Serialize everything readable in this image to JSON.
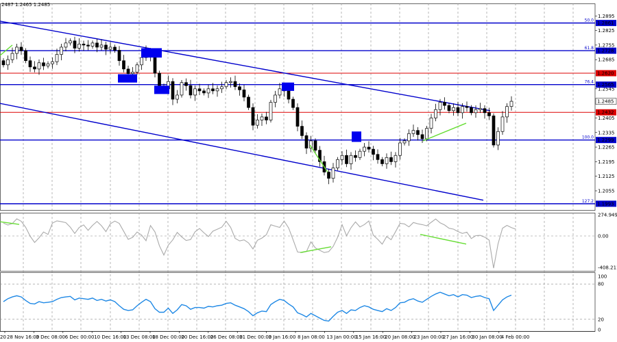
{
  "header": {
    "ohlc_text": "2487 1.2465 1.2485"
  },
  "colors": {
    "bull": "#000000",
    "bear": "#000000",
    "channel": "#0000cc",
    "fib_line": "#0000cc",
    "red_level": "#dd0000",
    "blue_box": "#0000ee",
    "divergence": "#66dd33",
    "cci": "#aaaaaa",
    "rsi": "#1e88e5",
    "grid": "#888888"
  },
  "chart_data": [
    {
      "type": "candlestick",
      "pane": "price",
      "ylim": [
        1.1963,
        1.2955
      ],
      "y_ticks": [
        "1.2895",
        "1.2825",
        "1.2755",
        "1.2685",
        "1.2545",
        "1.2405",
        "1.2335",
        "1.2265",
        "1.2195",
        "1.2125",
        "1.2055"
      ],
      "current_price": "1.2485",
      "levels": [
        {
          "value": 1.2861,
          "label": "1.2861",
          "fib": "50.0",
          "kind": "fib"
        },
        {
          "value": 1.2728,
          "label": "1.2728",
          "fib": "61.8",
          "kind": "fib"
        },
        {
          "value": 1.262,
          "label": "1.2620",
          "fib": "",
          "kind": "red"
        },
        {
          "value": 1.2565,
          "label": "1.2565",
          "fib": "76.4",
          "kind": "fib"
        },
        {
          "value": 1.2432,
          "label": "1.2432",
          "fib": "",
          "kind": "red"
        },
        {
          "value": 1.2299,
          "label": "1.2299",
          "fib": "100.0",
          "kind": "fib"
        },
        {
          "value": 1.1993,
          "label": "1.1993",
          "fib": "127.2",
          "kind": "fib"
        }
      ],
      "channel_upper": [
        [
          0,
          1.287
        ],
        [
          715,
          1.244
        ]
      ],
      "channel_lower": [
        [
          0,
          1.2475
        ],
        [
          705,
          1.201
        ]
      ],
      "closes": [
        1.266,
        1.2685,
        1.2715,
        1.2745,
        1.2728,
        1.268,
        1.265,
        1.264,
        1.267,
        1.2655,
        1.2665,
        1.2675,
        1.271,
        1.2745,
        1.2765,
        1.2775,
        1.274,
        1.276,
        1.2755,
        1.275,
        1.2765,
        1.2745,
        1.2755,
        1.2735,
        1.2745,
        1.273,
        1.268,
        1.264,
        1.2618,
        1.2625,
        1.266,
        1.2695,
        1.2725,
        1.2705,
        1.262,
        1.255,
        1.2545,
        1.258,
        1.2495,
        1.2515,
        1.2575,
        1.256,
        1.2515,
        1.2545,
        1.2535,
        1.2525,
        1.2545,
        1.2535,
        1.2545,
        1.2555,
        1.2575,
        1.258,
        1.2555,
        1.254,
        1.2505,
        1.2455,
        1.237,
        1.2395,
        1.241,
        1.2395,
        1.248,
        1.2515,
        1.2545,
        1.2535,
        1.2495,
        1.2455,
        1.2365,
        1.232,
        1.226,
        1.2295,
        1.225,
        1.2195,
        1.2145,
        1.2115,
        1.2165,
        1.2205,
        1.2225,
        1.2185,
        1.2225,
        1.2215,
        1.2245,
        1.2265,
        1.2255,
        1.223,
        1.2205,
        1.2185,
        1.2215,
        1.2195,
        1.2225,
        1.2285,
        1.2295,
        1.233,
        1.2345,
        1.2325,
        1.2305,
        1.2355,
        1.2405,
        1.2445,
        1.248,
        1.2465,
        1.244,
        1.2455,
        1.243,
        1.246,
        1.2455,
        1.243,
        1.2445,
        1.245,
        1.243,
        1.2415,
        1.2275,
        1.234,
        1.241,
        1.246,
        1.2485
      ]
    },
    {
      "type": "line",
      "pane": "CCI",
      "ylim": [
        -408.2116,
        274.9492
      ],
      "y_ticks": [
        "274.9492",
        "0.00",
        "-408.2116"
      ],
      "series": [
        {
          "values": [
            168,
            142,
            161,
            223,
            191,
            112,
            -3,
            -84,
            -23,
            51,
            20,
            168,
            196,
            185,
            173,
            114,
            33,
            111,
            144,
            73,
            137,
            189,
            133,
            57,
            158,
            193,
            162,
            59,
            -44,
            -18,
            51,
            12,
            -61,
            136,
            53,
            -126,
            -248,
            -119,
            -51,
            46,
            -12,
            -58,
            -47,
            54,
            97,
            41,
            -7,
            62,
            88,
            114,
            191,
            111,
            -31,
            -64,
            -51,
            -90,
            -169,
            -56,
            -28,
            16,
            145,
            128,
            111,
            194,
            105,
            -48,
            -208,
            -215,
            -202,
            -76,
            -155,
            -186,
            -215,
            -203,
            -135,
            -17,
            147,
            3,
            107,
            183,
            117,
            148,
            194,
            11,
            -44,
            -106,
            -7,
            -49,
            56,
            164,
            156,
            118,
            175,
            158,
            147,
            132,
            177,
            220,
            170,
            143,
            100,
            89,
            58,
            33,
            50,
            -34,
            4,
            8,
            -15,
            -53,
            -417,
            -102,
            101,
            137,
            108,
            88
          ]
        }
      ]
    },
    {
      "type": "line",
      "pane": "RSI",
      "ylim": [
        0,
        100
      ],
      "y_ticks": [
        "100",
        "80",
        "20",
        "0"
      ],
      "series": [
        {
          "values": [
            50,
            55,
            58,
            60,
            58,
            52,
            47,
            46,
            50,
            48,
            49,
            50,
            54,
            57,
            58,
            59,
            53,
            56,
            55,
            54,
            56,
            52,
            54,
            51,
            53,
            50,
            43,
            37,
            35,
            36,
            43,
            49,
            54,
            50,
            38,
            32,
            32,
            39,
            30,
            36,
            45,
            43,
            37,
            40,
            40,
            39,
            42,
            41,
            43,
            44,
            47,
            48,
            44,
            41,
            38,
            33,
            26,
            31,
            34,
            33,
            45,
            50,
            54,
            52,
            46,
            41,
            31,
            28,
            24,
            30,
            26,
            22,
            18,
            17,
            25,
            32,
            35,
            30,
            36,
            35,
            40,
            43,
            41,
            37,
            35,
            33,
            38,
            35,
            40,
            48,
            49,
            53,
            55,
            51,
            49,
            54,
            59,
            63,
            66,
            63,
            60,
            62,
            58,
            62,
            61,
            57,
            59,
            60,
            57,
            55,
            35,
            44,
            53,
            58,
            61
          ]
        }
      ]
    }
  ],
  "x_axis": {
    "labels": [
      "28 Nov 16:00",
      "3 Dec 08:00",
      "6 Dec 00:00",
      "10 Dec 16:00",
      "13 Dec 08:00",
      "18 Dec 00:00",
      "20 Dec 16:00",
      "26 Dec 08:00",
      "31 Dec 00:00",
      "3 Jan 16:00",
      "8 Jan 08:00",
      "13 Jan 00:00",
      "15 Jan 16:00",
      "20 Jan 08:00",
      "23 Jan 00:00",
      "27 Jan 16:00",
      "30 Jan 08:00",
      "4 Feb 00:00"
    ],
    "first_label_fragment": "20"
  }
}
